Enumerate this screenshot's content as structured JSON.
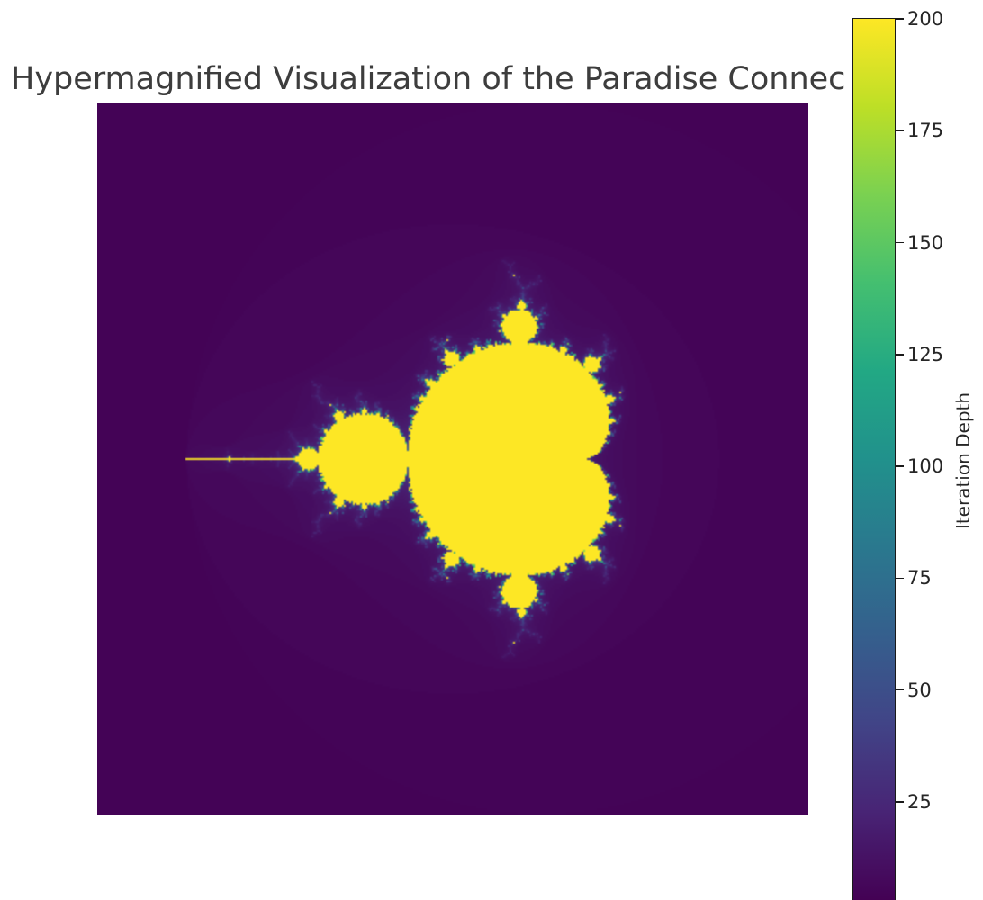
{
  "chart_data": {
    "type": "heatmap",
    "title": "Hypermagnified Visualization of the Paradise Connec",
    "colorbar": {
      "label": "Iteration Depth",
      "min": 0,
      "max": 200,
      "ticks": [
        25,
        50,
        75,
        100,
        125,
        150,
        175,
        200
      ],
      "colormap": "viridis",
      "colors": [
        "#440154",
        "#482475",
        "#414487",
        "#355f8d",
        "#2a788e",
        "#21918c",
        "#22a884",
        "#44bf70",
        "#7ad151",
        "#bddf26",
        "#fde725"
      ]
    },
    "image": {
      "description": "Mandelbrot set, escape-time iteration depth",
      "max_iterations": 200,
      "axes_visible": false
    }
  }
}
